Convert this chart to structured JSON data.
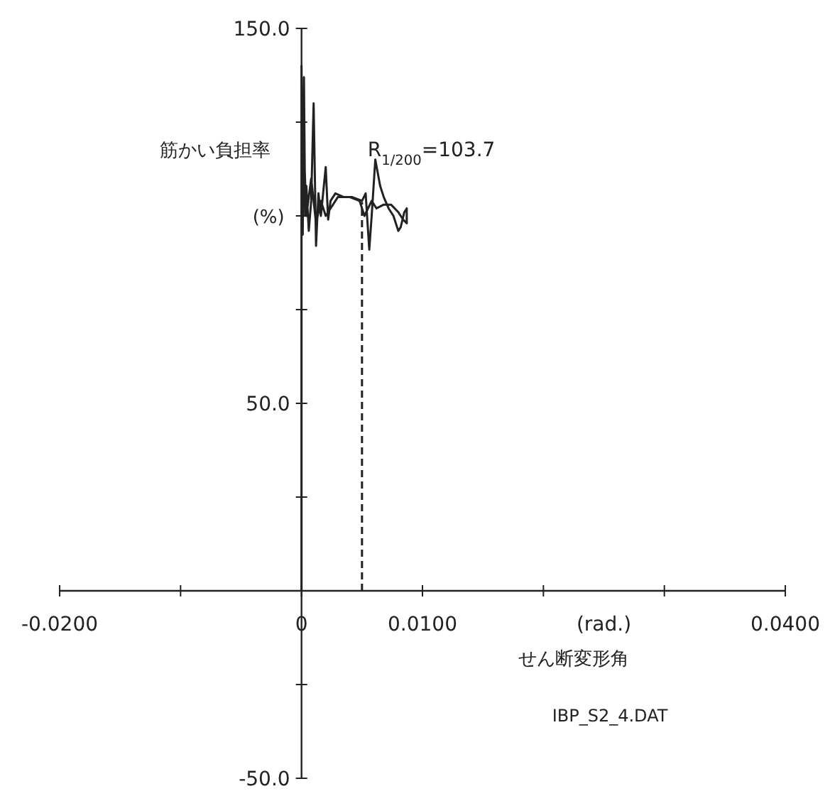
{
  "chart_data": {
    "type": "line",
    "ylabel": "筋かい負担率",
    "xlabel": "せん断変形角",
    "annotations": [
      "(%)",
      "(rad.)",
      "IBP_S2_4.DAT",
      {
        "text": "R$_{1/200}$=103.7",
        "x": 0.005,
        "y": 103.7
      }
    ],
    "xlim": [
      -0.02,
      0.04
    ],
    "ylim": [
      -50,
      150
    ],
    "xticks": [
      {
        "value": -0.02,
        "label": "-0.0200"
      },
      {
        "value": -0.01,
        "label": null
      },
      0,
      {
        "value": 0.01,
        "label": "0.0100"
      },
      {
        "value": 0.02,
        "label": null
      },
      {
        "value": 0.03,
        "label": null
      },
      {
        "value": 0.04,
        "label": "0.0400"
      }
    ],
    "yticks": [
      {
        "value": -50,
        "label": "-50.0"
      },
      {
        "value": -25,
        "label": null
      },
      {
        "value": 25,
        "label": null
      },
      {
        "value": 50,
        "label": "50.0"
      },
      {
        "value": 75,
        "label": null
      },
      {
        "value": 100,
        "label": null
      },
      {
        "value": 125,
        "label": null
      },
      {
        "value": 150,
        "label": "150.0"
      }
    ],
    "grid": false,
    "series": [
      {
        "color": "#222222",
        "line_style": "solid",
        "x": [
          0,
          0,
          0.0001,
          0.0002,
          0.0003,
          0.0004,
          0.0006,
          0.0008,
          0.001,
          0.0012,
          0.0014,
          0.0016,
          0.002,
          0.0022,
          0.0024,
          0.0028,
          0.0035,
          0.0042,
          0.005,
          0.0053,
          0.0056,
          0.0058,
          0.0061,
          0.0065,
          0.0068,
          0.0072,
          0.0076,
          0.008,
          0.0082,
          0.0085,
          0.0087,
          0.0087,
          0.0084,
          0.008,
          0.0074,
          0.0068,
          0.0062,
          0.0058,
          0.0052,
          0.0048,
          0.004,
          0.003,
          0.0024,
          0.002,
          0.0016,
          0.0012,
          0.0008,
          0.0004,
          0.0002,
          0
        ],
        "values": [
          0,
          140,
          95,
          137,
          100,
          108,
          96,
          104,
          130,
          92,
          106,
          100,
          113,
          99,
          104,
          106,
          105,
          105,
          104,
          106,
          91,
          100,
          115,
          108,
          105,
          102,
          100,
          96,
          97,
          101,
          102,
          98,
          99,
          101,
          103,
          103,
          102,
          104,
          100,
          104,
          105,
          105,
          102,
          100,
          104,
          98,
          110,
          100,
          118,
          96
        ]
      },
      {
        "type": "line",
        "color": "#222222",
        "line_style": "dashed",
        "x": [
          0.005,
          0.005
        ],
        "values": [
          0,
          103.7
        ]
      }
    ]
  }
}
